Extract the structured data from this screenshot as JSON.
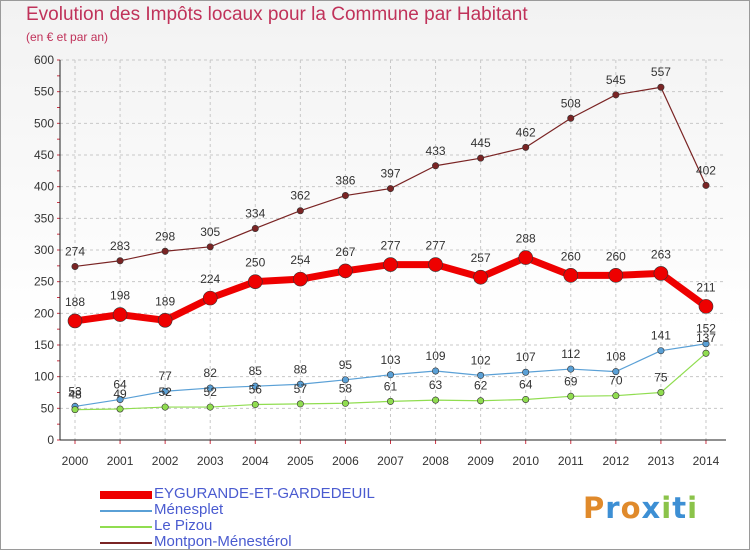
{
  "header": {
    "title": "Evolution des Impôts locaux pour la Commune par Habitant",
    "subtitle": "(en € et par an)"
  },
  "logo": {
    "text": "Proxiti"
  },
  "chart_data": {
    "type": "line",
    "title": "Evolution des Impôts locaux pour la Commune par Habitant",
    "subtitle": "(en € et par an)",
    "xlabel": "",
    "ylabel": "",
    "ylim": [
      0,
      600
    ],
    "yticks": [
      0,
      50,
      100,
      150,
      200,
      250,
      300,
      350,
      400,
      450,
      500,
      550,
      600
    ],
    "grid": true,
    "legend_position": "bottom-left",
    "x": [
      "2000",
      "2001",
      "2002",
      "2003",
      "2004",
      "2005",
      "2006",
      "2007",
      "2008",
      "2009",
      "2010",
      "2011",
      "2012",
      "2013",
      "2014"
    ],
    "series": [
      {
        "name": "Montpon-Ménestérol",
        "color": "#7a2424",
        "values": [
          274,
          283,
          298,
          305,
          334,
          362,
          386,
          397,
          433,
          445,
          462,
          508,
          545,
          557,
          402
        ]
      },
      {
        "name": "EYGURANDE-ET-GARDEDEUIL",
        "color": "#ee0000",
        "values": [
          188,
          198,
          189,
          224,
          250,
          254,
          267,
          277,
          277,
          257,
          288,
          260,
          260,
          263,
          211
        ]
      },
      {
        "name": "Ménesplet",
        "color": "#5aa0d6",
        "values": [
          53,
          64,
          77,
          82,
          85,
          88,
          95,
          103,
          109,
          102,
          107,
          112,
          108,
          141,
          152
        ]
      },
      {
        "name": "Le Pizou",
        "color": "#90dd50",
        "values": [
          48,
          49,
          52,
          52,
          56,
          57,
          58,
          61,
          63,
          62,
          64,
          69,
          70,
          75,
          137
        ]
      }
    ],
    "legend": [
      {
        "name": "EYGURANDE-ET-GARDEDEUIL",
        "color": "#ee0000"
      },
      {
        "name": "Ménesplet",
        "color": "#5aa0d6"
      },
      {
        "name": "Le Pizou",
        "color": "#90dd50"
      },
      {
        "name": "Montpon-Ménestérol",
        "color": "#7a2424"
      }
    ]
  }
}
